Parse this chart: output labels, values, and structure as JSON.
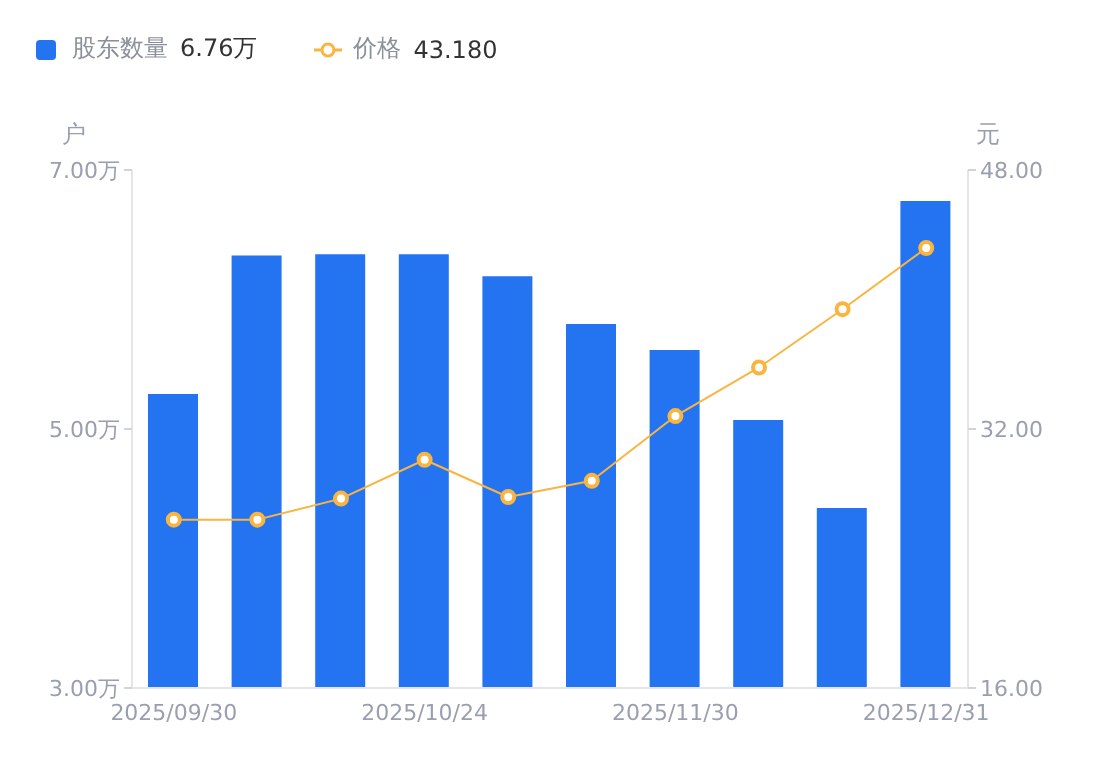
{
  "chart_data": {
    "type": "bar",
    "categories": [
      "2025/09/30",
      null,
      null,
      "2025/10/24",
      null,
      null,
      "2025/11/30",
      null,
      null,
      "2025/12/31"
    ],
    "series": [
      {
        "name": "股东数量",
        "color": "#2474f2",
        "values": [
          5.27,
          6.34,
          6.35,
          6.35,
          6.18,
          5.81,
          5.61,
          5.07,
          4.39,
          6.76
        ]
      },
      {
        "name": "价格",
        "type": "line",
        "axis": "y2",
        "color": "#f9b53f",
        "values": [
          26.4,
          26.4,
          27.7,
          30.1,
          27.8,
          28.8,
          32.8,
          35.8,
          39.4,
          43.18
        ]
      }
    ],
    "annotations": [
      "6.76万",
      "43.180"
    ],
    "ylabel": "户",
    "y2label": "元",
    "ylim": [
      3,
      7
    ],
    "yticks": [
      {
        "value": 3,
        "label": "3.00万"
      },
      {
        "value": 5,
        "label": "5.00万"
      },
      {
        "value": 7,
        "label": "7.00万"
      }
    ],
    "y2lim": [
      16,
      48
    ],
    "y2ticks": [
      {
        "value": 16,
        "label": "16.00"
      },
      {
        "value": 32,
        "label": "32.00"
      },
      {
        "value": 48,
        "label": "48.00"
      }
    ],
    "grid": false,
    "legend": "top left",
    "marker": "circle",
    "line_style": "solid"
  }
}
